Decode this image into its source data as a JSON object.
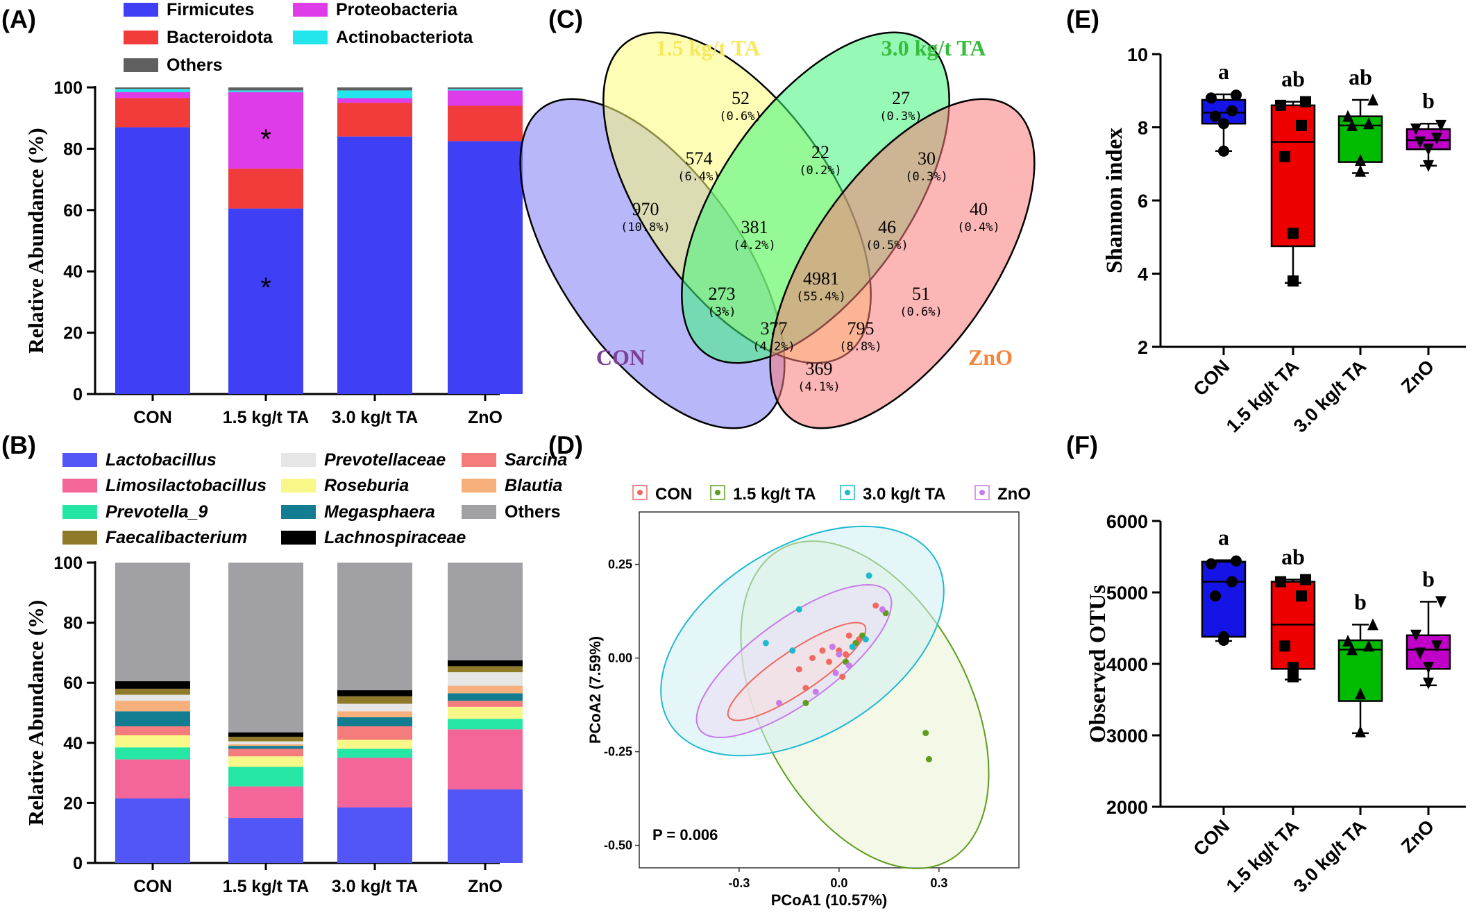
{
  "panels": {
    "A": "(A)",
    "B": "(B)",
    "C": "(C)",
    "D": "(D)",
    "E": "(E)",
    "F": "(F)"
  },
  "chart_data": [
    {
      "id": "A",
      "type": "bar",
      "stacked": true,
      "ylabel": "Relative Abundance (%)",
      "ylim": [
        0,
        100
      ],
      "yticks": [
        "0",
        "20",
        "40",
        "60",
        "80",
        "100"
      ],
      "categories": [
        "CON",
        "1.5 kg/t TA",
        "3.0 kg/t TA",
        "ZnO"
      ],
      "legend": "top",
      "series": [
        {
          "name": "Firmicutes",
          "color": "#3f3ff5",
          "values": [
            87,
            60.5,
            84,
            82.5
          ]
        },
        {
          "name": "Bacteroidota",
          "color": "#f23b3b",
          "values": [
            9.5,
            13,
            11,
            11.5
          ]
        },
        {
          "name": "Proteobacteria",
          "color": "#df3ce9",
          "values": [
            2,
            25,
            1.5,
            5
          ]
        },
        {
          "name": "Actinobacteriota",
          "color": "#22e6ec",
          "values": [
            1,
            0.5,
            2.5,
            0.5
          ]
        },
        {
          "name": "Others",
          "color": "#5f5f5f",
          "values": [
            0.5,
            1,
            1,
            0.5
          ]
        }
      ],
      "annotations": [
        "*",
        "*"
      ]
    },
    {
      "id": "B",
      "type": "bar",
      "stacked": true,
      "ylabel": "Relative Abundance (%)",
      "ylim": [
        0,
        100
      ],
      "yticks": [
        "0",
        "20",
        "40",
        "60",
        "80",
        "100"
      ],
      "categories": [
        "CON",
        "1.5 kg/t TA",
        "3.0 kg/t TA",
        "ZnO"
      ],
      "legend": "top",
      "series": [
        {
          "name": "Lactobacillus",
          "color": "#5256f7",
          "italic": true,
          "values": [
            21.5,
            15,
            18.5,
            24.5
          ]
        },
        {
          "name": "Limosilactobacillus",
          "color": "#f4659a",
          "italic": true,
          "values": [
            13,
            10.5,
            16.5,
            20
          ]
        },
        {
          "name": "Prevotella_9",
          "color": "#26e6a6",
          "italic": true,
          "values": [
            4,
            6.5,
            3,
            3.5
          ]
        },
        {
          "name": "Roseburia",
          "color": "#f8f889",
          "italic": true,
          "values": [
            4,
            3.5,
            3,
            4
          ]
        },
        {
          "name": "Sarcina",
          "color": "#f47c7c",
          "italic": true,
          "values": [
            3,
            2.5,
            4.5,
            2
          ]
        },
        {
          "name": "Megasphaera",
          "color": "#127d91",
          "italic": true,
          "values": [
            5,
            1,
            3,
            2.5
          ]
        },
        {
          "name": "Blautia",
          "color": "#f7b07b",
          "italic": true,
          "values": [
            3.5,
            0.5,
            2,
            2.5
          ]
        },
        {
          "name": "Prevotellaceae",
          "color": "#e6e6e6",
          "italic": true,
          "values": [
            2,
            1,
            2.5,
            4.5
          ]
        },
        {
          "name": "Faecalibacterium",
          "color": "#8f7a2a",
          "italic": true,
          "values": [
            2,
            1.5,
            2.5,
            2
          ]
        },
        {
          "name": "Lachnospiraceae",
          "color": "#000000",
          "italic": true,
          "values": [
            2.5,
            1.5,
            2,
            2
          ]
        },
        {
          "name": "Others",
          "color": "#a1a1a5",
          "italic": false,
          "values": [
            39.5,
            56.5,
            42.5,
            32.5
          ]
        }
      ]
    },
    {
      "id": "C",
      "type": "venn",
      "sets": [
        {
          "name": "CON",
          "color": "#7f3f98",
          "fill": "#7b7bf5"
        },
        {
          "name": "1.5 kg/t TA",
          "color": "#f7e85e",
          "fill": "#fbfb7a"
        },
        {
          "name": "3.0 kg/t TA",
          "color": "#35be3b",
          "fill": "#3ff57a"
        },
        {
          "name": "ZnO",
          "color": "#f5853a",
          "fill": "#f97a7a"
        }
      ],
      "regions": [
        {
          "count": "970",
          "pct": "(10.8%)"
        },
        {
          "count": "52",
          "pct": "(0.6%)"
        },
        {
          "count": "27",
          "pct": "(0.3%)"
        },
        {
          "count": "40",
          "pct": "(0.4%)"
        },
        {
          "count": "574",
          "pct": "(6.4%)"
        },
        {
          "count": "22",
          "pct": "(0.2%)"
        },
        {
          "count": "30",
          "pct": "(0.3%)"
        },
        {
          "count": "381",
          "pct": "(4.2%)"
        },
        {
          "count": "46",
          "pct": "(0.5%)"
        },
        {
          "count": "4981",
          "pct": "(55.4%)"
        },
        {
          "count": "273",
          "pct": "(3%)"
        },
        {
          "count": "51",
          "pct": "(0.6%)"
        },
        {
          "count": "377",
          "pct": "(4.2%)"
        },
        {
          "count": "795",
          "pct": "(8.8%)"
        },
        {
          "count": "369",
          "pct": "(4.1%)"
        }
      ]
    },
    {
      "id": "D",
      "type": "scatter",
      "xlabel": "PCoA1 (10.57%)",
      "ylabel": "PCoA2 (7.59%)",
      "xlim": [
        -0.6,
        0.54
      ],
      "ylim": [
        -0.56,
        0.39
      ],
      "xticks": [
        "-0.3",
        "0.0",
        "0.3"
      ],
      "yticks": [
        "-0.50",
        "-0.25",
        "0.00",
        "0.25"
      ],
      "annotation": "P = 0.006",
      "legend": "top",
      "series": [
        {
          "name": "CON",
          "color": "#f06a63",
          "points": [
            [
              -0.12,
              -0.03
            ],
            [
              -0.08,
              0
            ],
            [
              -0.05,
              0.02
            ],
            [
              -0.02,
              0.03
            ],
            [
              0.01,
              -0.05
            ],
            [
              -0.1,
              -0.08
            ],
            [
              0.02,
              0.01
            ],
            [
              0.03,
              0.06
            ],
            [
              0.11,
              0.14
            ],
            [
              -0.03,
              -0.01
            ],
            [
              0.06,
              0.05
            ],
            [
              0,
              0.02
            ]
          ]
        },
        {
          "name": "1.5 kg/t TA",
          "color": "#5e9c1b",
          "points": [
            [
              -0.1,
              -0.12
            ],
            [
              0.02,
              -0.01
            ],
            [
              0.07,
              0.06
            ],
            [
              0.26,
              -0.2
            ],
            [
              0.27,
              -0.27
            ],
            [
              0.14,
              0.12
            ],
            [
              0.05,
              0.04
            ]
          ]
        },
        {
          "name": "3.0 kg/t TA",
          "color": "#1fb9cf",
          "points": [
            [
              -0.22,
              0.04
            ],
            [
              -0.12,
              0.13
            ],
            [
              -0.14,
              0.02
            ],
            [
              0.09,
              0.22
            ],
            [
              0.08,
              0.05
            ],
            [
              0.04,
              0.03
            ]
          ]
        },
        {
          "name": "ZnO",
          "color": "#c77be8",
          "points": [
            [
              -0.18,
              -0.12
            ],
            [
              -0.07,
              -0.09
            ],
            [
              -0.02,
              0.03
            ],
            [
              0,
              0.01
            ],
            [
              0.03,
              -0.02
            ],
            [
              0.13,
              0.13
            ],
            [
              -0.01,
              -0.04
            ]
          ]
        }
      ]
    },
    {
      "id": "E",
      "type": "box",
      "ylabel": "Shannon index",
      "ylim": [
        2,
        10
      ],
      "yticks": [
        "2",
        "4",
        "6",
        "8",
        "10"
      ],
      "categories": [
        "CON",
        "1.5 kg/t TA",
        "3.0 kg/t TA",
        "ZnO"
      ],
      "boxes": [
        {
          "min": 7.35,
          "q1": 8.1,
          "median": 8.4,
          "q3": 8.75,
          "max": 8.9,
          "color": "#1414e6",
          "marker": "circle",
          "points": [
            8.88,
            8.8,
            8.45,
            8.3,
            8.1,
            7.35
          ],
          "letter": "a"
        },
        {
          "min": 3.75,
          "q1": 4.75,
          "median": 7.6,
          "q3": 8.6,
          "max": 8.7,
          "color": "#ee0000",
          "marker": "square",
          "points": [
            8.7,
            8.6,
            8.05,
            7.2,
            5.1,
            3.8
          ],
          "letter": "ab"
        },
        {
          "min": 6.75,
          "q1": 7.05,
          "median": 8.05,
          "q3": 8.3,
          "max": 8.75,
          "color": "#00bb00",
          "marker": "triangle",
          "points": [
            8.75,
            8.3,
            8.1,
            8.05,
            7.1,
            6.8
          ],
          "letter": "ab"
        },
        {
          "min": 6.95,
          "q1": 7.4,
          "median": 7.65,
          "q3": 7.95,
          "max": 8.1,
          "color": "#c000c8",
          "marker": "triangle-down",
          "points": [
            8.05,
            7.95,
            7.7,
            7.6,
            7.4,
            6.95
          ],
          "letter": "b"
        }
      ]
    },
    {
      "id": "F",
      "type": "box",
      "ylabel": "Observed OTUs",
      "ylim": [
        2000,
        6000
      ],
      "yticks": [
        "2000",
        "3000",
        "4000",
        "5000",
        "6000"
      ],
      "categories": [
        "CON",
        "1.5 kg/t TA",
        "3.0 kg/t TA",
        "ZnO"
      ],
      "boxes": [
        {
          "min": 4320,
          "q1": 4380,
          "median": 5150,
          "q3": 5430,
          "max": 5450,
          "color": "#1414e6",
          "marker": "circle",
          "points": [
            5440,
            5400,
            5150,
            4950,
            4380,
            4330
          ],
          "letter": "a"
        },
        {
          "min": 3780,
          "q1": 3930,
          "median": 4550,
          "q3": 5150,
          "max": 5180,
          "color": "#ee0000",
          "marker": "square",
          "points": [
            5180,
            5150,
            4950,
            4250,
            3950,
            3820
          ],
          "letter": "ab"
        },
        {
          "min": 3030,
          "q1": 3480,
          "median": 4200,
          "q3": 4330,
          "max": 4550,
          "color": "#00bb00",
          "marker": "triangle",
          "points": [
            4550,
            4320,
            4250,
            4200,
            3580,
            3050
          ],
          "letter": "b"
        },
        {
          "min": 3700,
          "q1": 3930,
          "median": 4200,
          "q3": 4400,
          "max": 4870,
          "color": "#c000c8",
          "marker": "triangle-down",
          "points": [
            4870,
            4400,
            4250,
            4150,
            3950,
            3730
          ],
          "letter": "b"
        }
      ]
    }
  ]
}
